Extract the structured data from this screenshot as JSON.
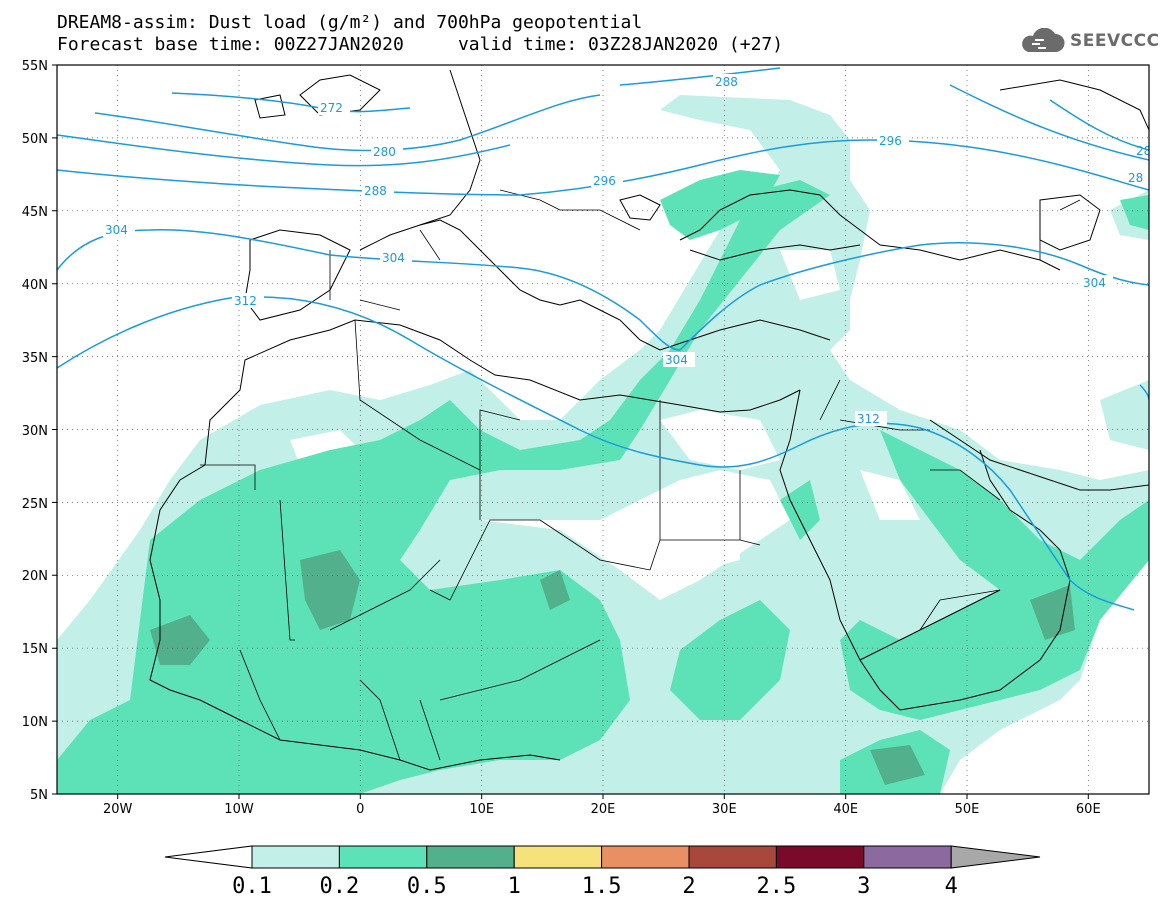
{
  "header": {
    "title_line1": "DREAM8-assim: Dust load (g/m²) and 700hPa geopotential",
    "title_line2": "Forecast base time: 00Z27JAN2020     valid time: 03Z28JAN2020 (+27)",
    "logo_text": "SEEVCCC"
  },
  "map": {
    "lat_labels": [
      "55N",
      "50N",
      "45N",
      "40N",
      "35N",
      "30N",
      "25N",
      "20N",
      "15N",
      "10N",
      "5N"
    ],
    "lon_labels": [
      "20W",
      "10W",
      "0",
      "10E",
      "20E",
      "30E",
      "40E",
      "50E",
      "60E"
    ],
    "extent": {
      "lon_min": -25,
      "lon_max": 65,
      "lat_min": 5,
      "lat_max": 55
    },
    "geopotential_contour_color": "#1a9bdc",
    "geopotential_labels": [
      "272",
      "280",
      "288",
      "288",
      "296",
      "296",
      "304",
      "304",
      "304",
      "304",
      "312",
      "312",
      "28",
      "28"
    ]
  },
  "colorbar": {
    "labels": [
      "0.1",
      "0.2",
      "0.5",
      "1",
      "1.5",
      "2",
      "2.5",
      "3",
      "4"
    ],
    "colors": [
      "#ffffff",
      "#c2f0e8",
      "#5de2b8",
      "#52b08c",
      "#f5e27a",
      "#e88f64",
      "#a8483c",
      "#7a0a2a",
      "#8c6aa0",
      "#a8a8a8"
    ]
  }
}
